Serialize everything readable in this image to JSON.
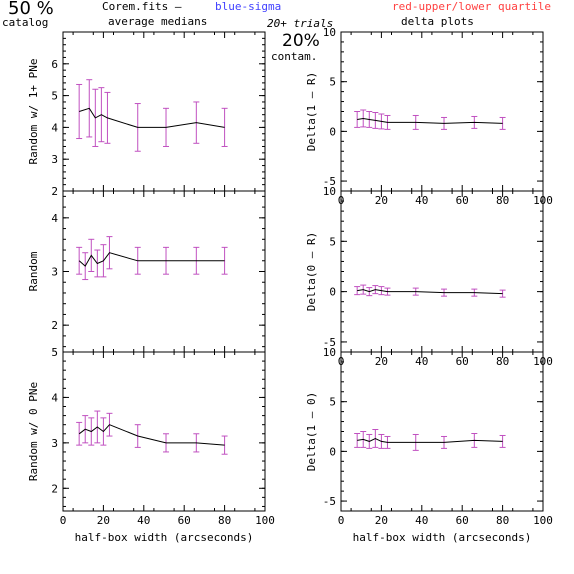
{
  "header": {
    "left_big": "50 %",
    "left_small": "catalog",
    "file_label": "Corem.fits  –",
    "blue_label": "blue-sigma",
    "red_label": "red-upper/lower quartile",
    "sub_label": "average medians",
    "trials_label": "20+ trials",
    "contam_big": "20%",
    "contam_small": "contam.",
    "right_title": "delta plots",
    "colors": {
      "blue": "#4040ff",
      "red": "#ff4040",
      "line": "#000000",
      "errorbar": "#c050c0"
    }
  },
  "chart_data": [
    {
      "type": "line",
      "xlabel": "",
      "ylabel": "Random w/ 1+ PNe",
      "xlim": [
        0,
        100
      ],
      "ylim": [
        2,
        7
      ],
      "xticks": [
        "0",
        "20",
        "40",
        "60",
        "80",
        "100"
      ],
      "yticks": [
        "2",
        "3",
        "4",
        "5",
        "6"
      ],
      "show_x_ticklabels": false,
      "series": [
        {
          "x": [
            8,
            13,
            16,
            19,
            22,
            37,
            51,
            66,
            80
          ],
          "values": [
            4.5,
            4.6,
            4.3,
            4.4,
            4.3,
            4.0,
            4.0,
            4.15,
            4.0
          ],
          "sigma": [
            0.85,
            0.9,
            0.9,
            0.85,
            0.8,
            0.75,
            0.6,
            0.65,
            0.6
          ]
        }
      ]
    },
    {
      "type": "line",
      "xlabel": "",
      "ylabel": "Delta(1 – R)",
      "xlim": [
        0,
        100
      ],
      "ylim": [
        -6,
        10
      ],
      "xticks": [
        "0",
        "20",
        "40",
        "60",
        "80",
        "100"
      ],
      "yticks": [
        "-5",
        "0",
        "5",
        "10"
      ],
      "show_x_ticklabels": true,
      "series": [
        {
          "x": [
            8,
            11,
            14,
            17,
            20,
            23,
            37,
            51,
            66,
            80
          ],
          "values": [
            1.2,
            1.3,
            1.2,
            1.1,
            1.0,
            0.9,
            0.9,
            0.8,
            0.9,
            0.8
          ],
          "sigma": [
            0.8,
            0.85,
            0.8,
            0.8,
            0.75,
            0.7,
            0.7,
            0.6,
            0.6,
            0.6
          ]
        }
      ]
    },
    {
      "type": "line",
      "xlabel": "",
      "ylabel": "Random",
      "xlim": [
        0,
        100
      ],
      "ylim": [
        1.5,
        4.5
      ],
      "xticks": [
        "0",
        "20",
        "40",
        "60",
        "80",
        "100"
      ],
      "yticks": [
        "2",
        "3",
        "4"
      ],
      "show_x_ticklabels": false,
      "series": [
        {
          "x": [
            8,
            11,
            14,
            17,
            20,
            23,
            37,
            51,
            66,
            80
          ],
          "values": [
            3.2,
            3.1,
            3.3,
            3.15,
            3.2,
            3.35,
            3.2,
            3.2,
            3.2,
            3.2
          ],
          "sigma": [
            0.25,
            0.25,
            0.3,
            0.25,
            0.3,
            0.3,
            0.25,
            0.25,
            0.25,
            0.25
          ]
        }
      ]
    },
    {
      "type": "line",
      "xlabel": "",
      "ylabel": "Delta(0 – R)",
      "xlim": [
        0,
        100
      ],
      "ylim": [
        -6,
        10
      ],
      "xticks": [
        "0",
        "20",
        "40",
        "60",
        "80",
        "100"
      ],
      "yticks": [
        "-5",
        "0",
        "5",
        "10"
      ],
      "show_x_ticklabels": true,
      "series": [
        {
          "x": [
            8,
            11,
            14,
            17,
            20,
            23,
            37,
            51,
            66,
            80
          ],
          "values": [
            0.1,
            0.2,
            0.0,
            0.2,
            0.1,
            0.0,
            0.0,
            -0.1,
            -0.1,
            -0.2
          ],
          "sigma": [
            0.4,
            0.45,
            0.4,
            0.4,
            0.4,
            0.35,
            0.35,
            0.35,
            0.35,
            0.35
          ]
        }
      ]
    },
    {
      "type": "line",
      "xlabel": "half-box width (arcseconds)",
      "ylabel": "Random w/ 0 PNe",
      "xlim": [
        0,
        100
      ],
      "ylim": [
        1.5,
        5
      ],
      "xticks": [
        "0",
        "20",
        "40",
        "60",
        "80",
        "100"
      ],
      "yticks": [
        "2",
        "3",
        "4",
        "5"
      ],
      "show_x_ticklabels": true,
      "series": [
        {
          "x": [
            8,
            11,
            14,
            17,
            20,
            23,
            37,
            51,
            66,
            80
          ],
          "values": [
            3.2,
            3.3,
            3.25,
            3.35,
            3.25,
            3.4,
            3.15,
            3.0,
            3.0,
            2.95
          ],
          "sigma": [
            0.25,
            0.3,
            0.3,
            0.35,
            0.3,
            0.25,
            0.25,
            0.2,
            0.2,
            0.2
          ]
        }
      ]
    },
    {
      "type": "line",
      "xlabel": "half-box width (arcseconds)",
      "ylabel": "Delta(1 – 0)",
      "xlim": [
        0,
        100
      ],
      "ylim": [
        -6,
        10
      ],
      "xticks": [
        "0",
        "20",
        "40",
        "60",
        "80",
        "100"
      ],
      "yticks": [
        "-5",
        "0",
        "5",
        "10"
      ],
      "show_x_ticklabels": true,
      "series": [
        {
          "x": [
            8,
            11,
            14,
            17,
            20,
            23,
            37,
            51,
            66,
            80
          ],
          "values": [
            1.1,
            1.2,
            1.0,
            1.3,
            1.0,
            0.9,
            0.9,
            0.9,
            1.1,
            1.0
          ],
          "sigma": [
            0.7,
            0.8,
            0.7,
            0.9,
            0.7,
            0.6,
            0.8,
            0.6,
            0.7,
            0.6
          ]
        }
      ]
    }
  ]
}
